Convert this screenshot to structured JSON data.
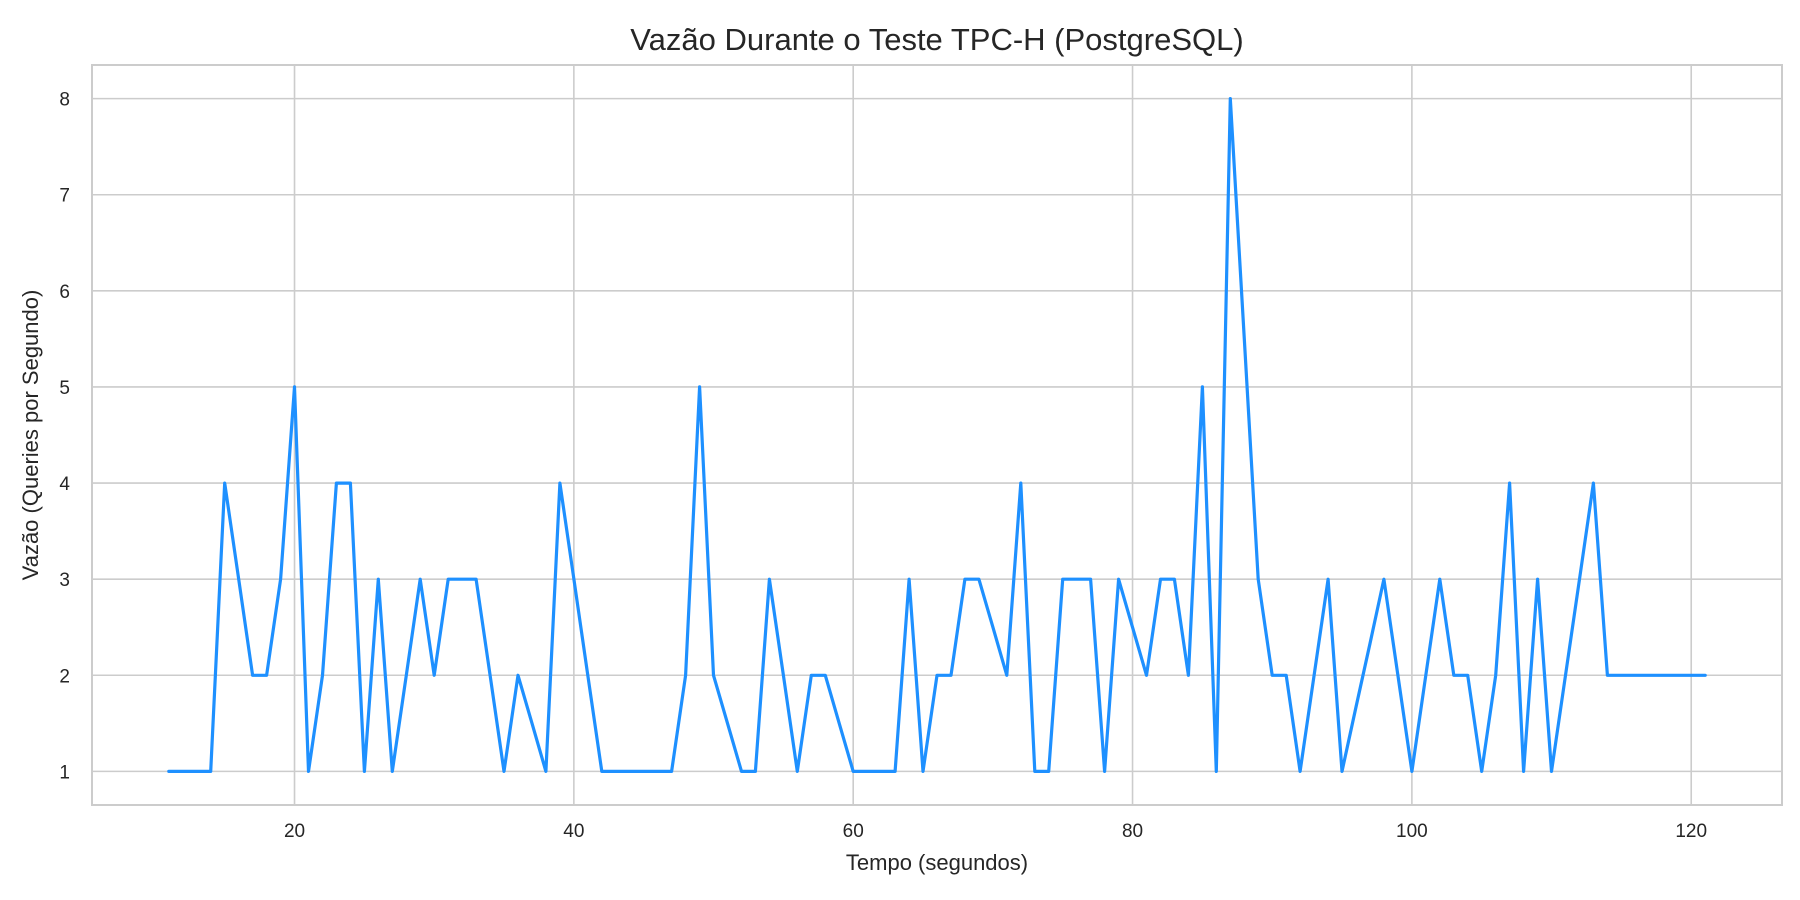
{
  "chart_data": {
    "type": "line",
    "title": "Vazão Durante o Teste TPC-H (PostgreSQL)",
    "xlabel": "Tempo (segundos)",
    "ylabel": "Vazão (Queries por Segundo)",
    "xlim": [
      5.5,
      126.5
    ],
    "ylim": [
      0.65,
      8.35
    ],
    "xticks": [
      20,
      40,
      60,
      80,
      100,
      120
    ],
    "yticks": [
      1,
      2,
      3,
      4,
      5,
      6,
      7,
      8
    ],
    "xtick_labels": [
      "20",
      "40",
      "60",
      "80",
      "100",
      "120"
    ],
    "ytick_labels": [
      "1",
      "2",
      "3",
      "4",
      "5",
      "6",
      "7",
      "8"
    ],
    "grid": true,
    "line_color": "#1E90FF",
    "series": [
      {
        "x": [
          11,
          12,
          13,
          14,
          15,
          16,
          17,
          18,
          19,
          20,
          21,
          22,
          23,
          24,
          25,
          26,
          27,
          28,
          29,
          30,
          31,
          32,
          33,
          34,
          35,
          36,
          37,
          38,
          39,
          40,
          41,
          42,
          43,
          44,
          45,
          46,
          47,
          48,
          49,
          50,
          51,
          52,
          53,
          54,
          55,
          56,
          57,
          58,
          59,
          60,
          61,
          62,
          63,
          64,
          65,
          66,
          67,
          68,
          69,
          70,
          71,
          72,
          73,
          74,
          75,
          76,
          77,
          78,
          79,
          80,
          81,
          82,
          83,
          84,
          85,
          86,
          87,
          88,
          89,
          90,
          91,
          92,
          93,
          94,
          95,
          96,
          97,
          98,
          99,
          100,
          101,
          102,
          103,
          104,
          105,
          106,
          107,
          108,
          109,
          110,
          111,
          112,
          113,
          114,
          115,
          116,
          117,
          118,
          119,
          120,
          121
        ],
        "values": [
          1,
          1,
          1,
          1,
          4,
          3,
          2,
          2,
          3,
          5,
          1,
          2,
          4,
          4,
          1,
          3,
          1,
          2,
          3,
          2,
          3,
          3,
          3,
          2,
          1,
          2,
          1.5,
          1,
          4,
          3,
          2,
          1,
          1,
          1,
          1,
          1,
          1,
          2,
          5,
          2,
          1.5,
          1,
          1,
          3,
          2,
          1,
          2,
          2,
          1.5,
          1,
          1,
          1,
          1,
          3,
          1,
          2,
          2,
          3,
          3,
          2.5,
          2,
          4,
          1,
          1,
          3,
          3,
          3,
          1,
          3,
          2.5,
          2,
          3,
          3,
          2,
          5,
          1,
          8,
          5.5,
          3,
          2,
          2,
          1,
          2,
          3,
          1,
          1.67,
          2.33,
          3,
          2,
          1,
          2,
          3,
          2,
          2,
          1,
          2,
          4,
          1,
          3,
          1,
          2,
          3,
          4,
          2,
          2,
          2,
          2,
          2,
          2,
          2,
          2
        ]
      }
    ]
  }
}
